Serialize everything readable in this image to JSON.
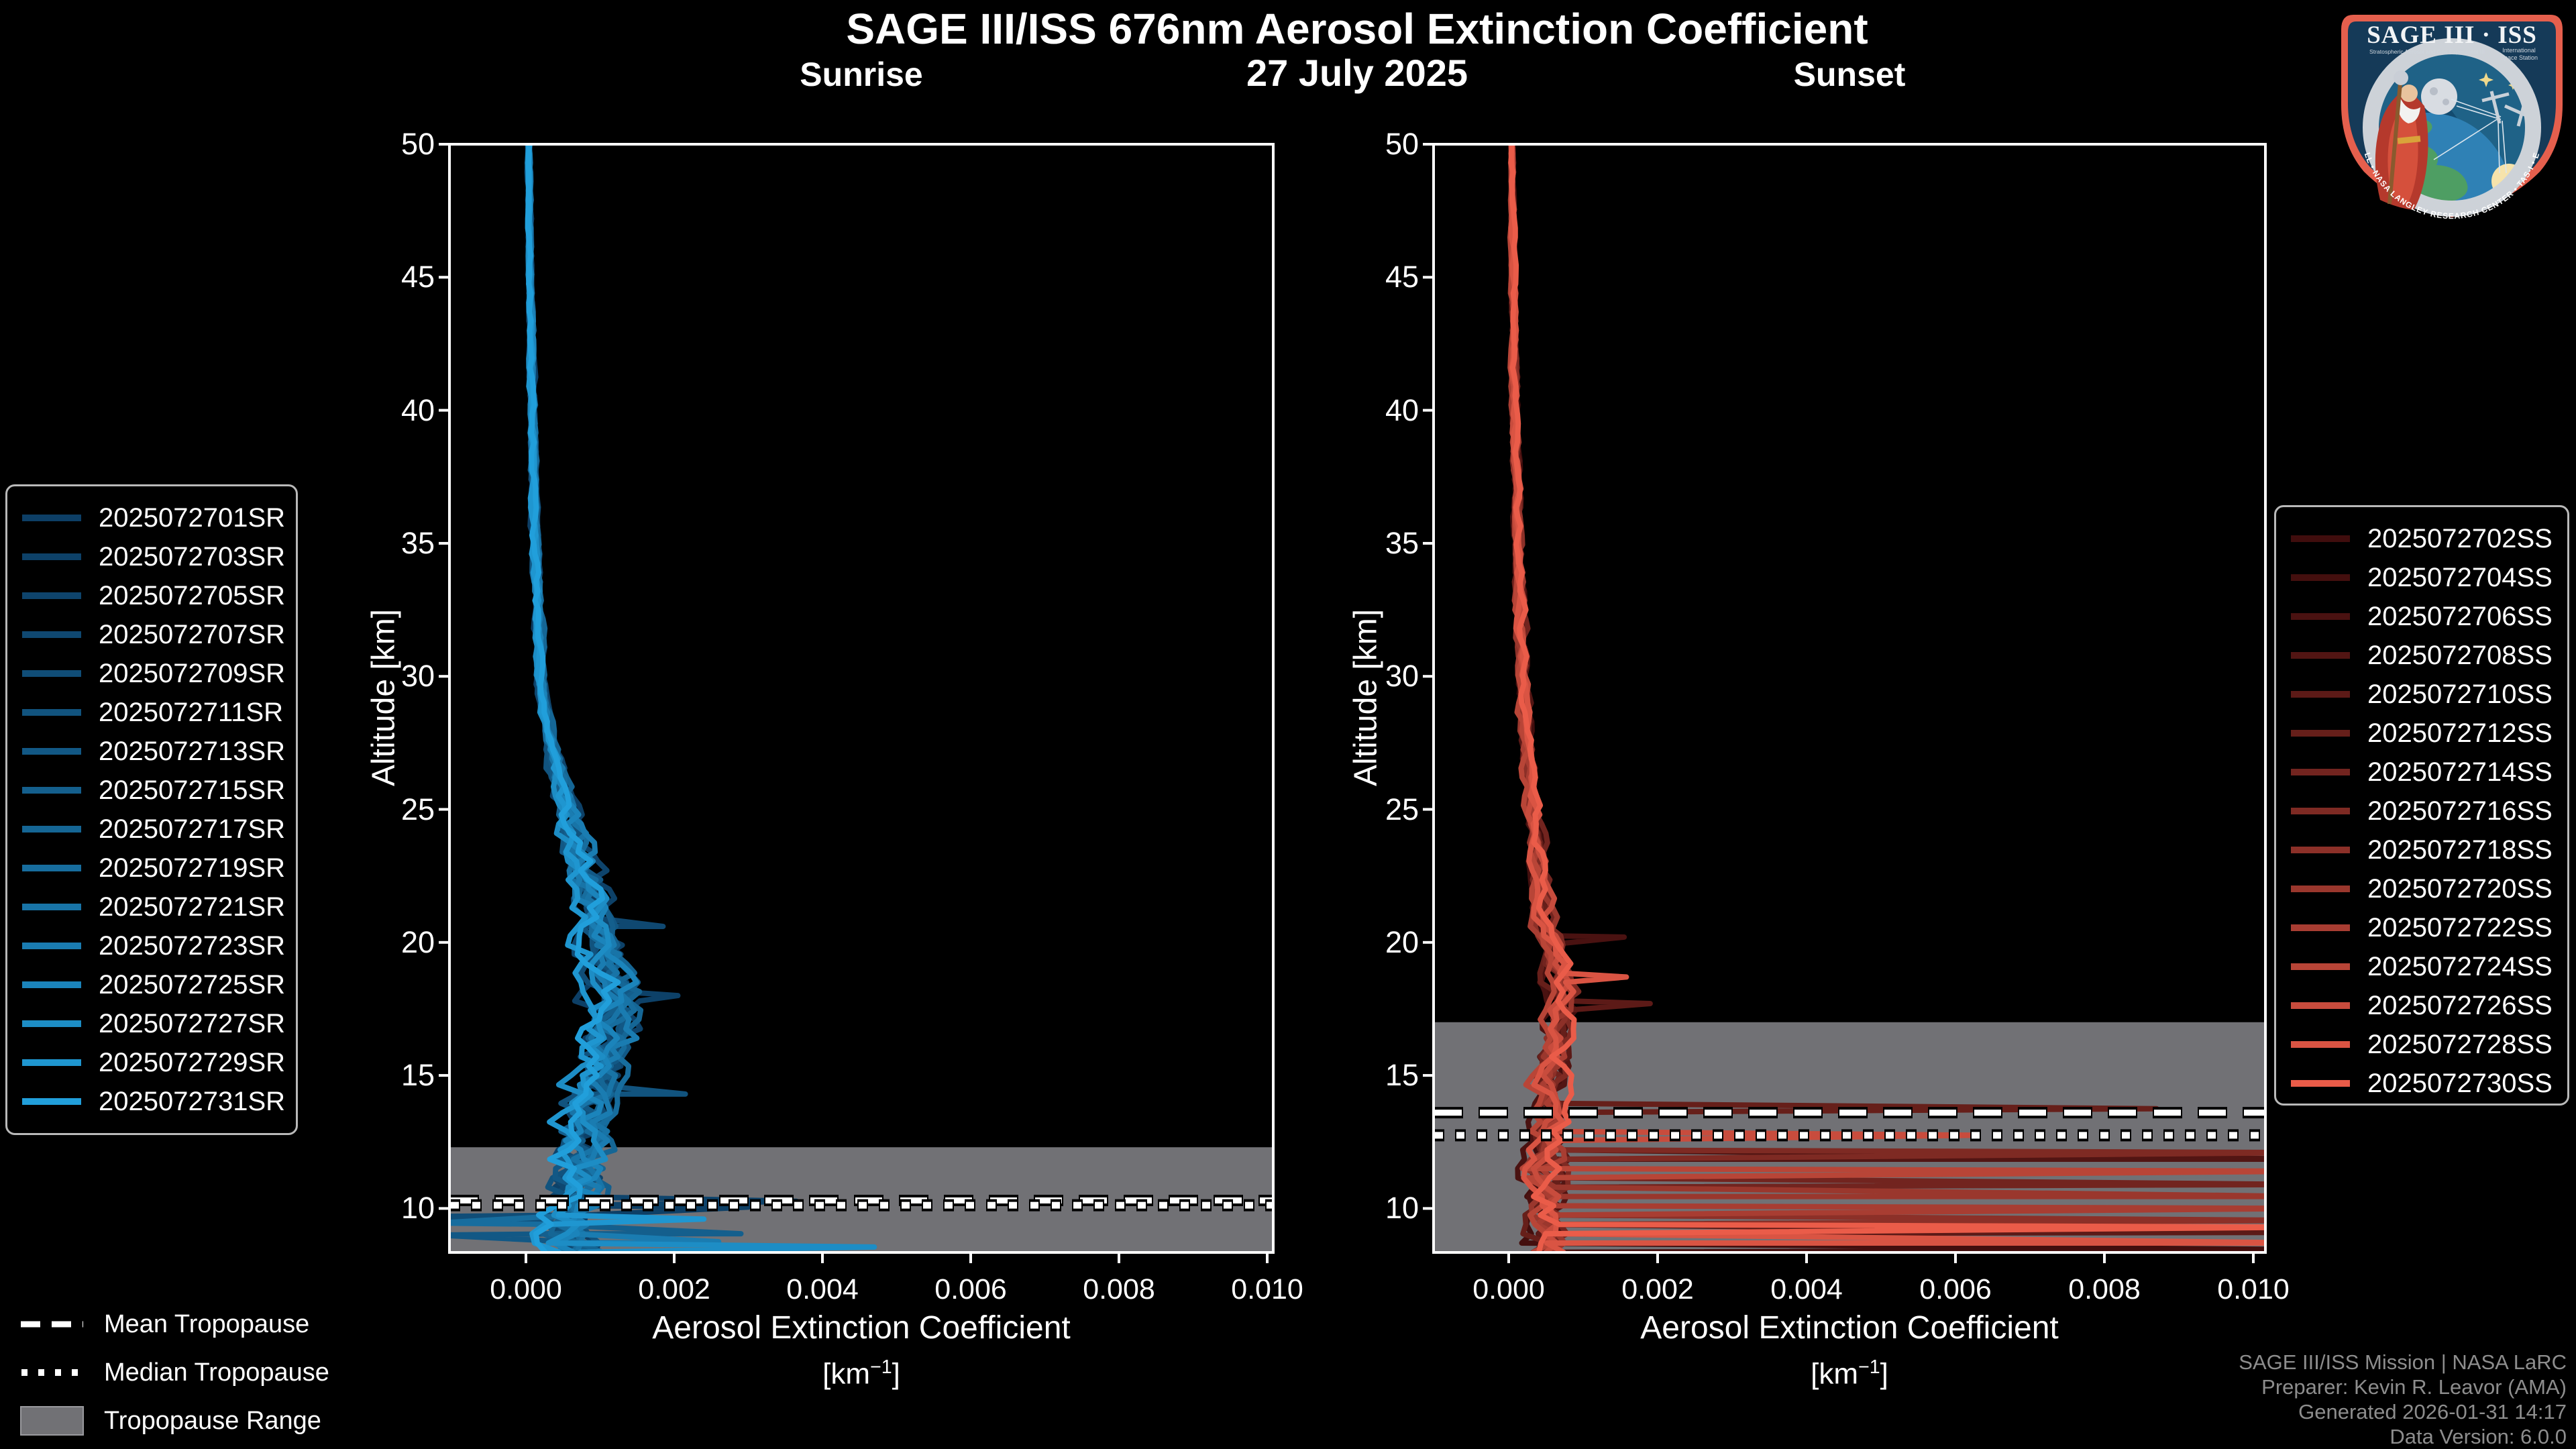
{
  "colors": {
    "background": "#000000",
    "axes": "#ffffff",
    "tropopause_band": "#717175",
    "footer_text": "#8d8d8d",
    "sunrise_cmap_start": "#0d3f66",
    "sunrise_cmap_end": "#219fdb",
    "sunset_cmap_start": "#400d0d",
    "sunset_cmap_end": "#ea5c49",
    "logo_border": "#e55f4d",
    "logo_field": "#153a58"
  },
  "header": {
    "title": "SAGE III/ISS 676nm Aerosol Extinction Coefficient",
    "date": "27 July 2025"
  },
  "axis": {
    "xlabel": "Aerosol Extinction Coefficient",
    "xunit_pre": "[km",
    "xunit_sup": "−1",
    "xunit_post": "]",
    "ylabel": "Altitude [km]"
  },
  "tropopause_legend": {
    "mean": "Mean Tropopause",
    "median": "Median Tropopause",
    "range": "Tropopause Range"
  },
  "footer": {
    "line1": "SAGE III/ISS Mission | NASA LaRC",
    "line2": "Preparer: Kevin R. Leavor (AMA)",
    "line3": "Generated 2026-01-31 14:17",
    "line4": "Data Version: 6.0.0"
  },
  "logo": {
    "title": "SAGE III · ISS",
    "subtitle_left": "Stratospheric Aerosol and Gas Experiment III",
    "subtitle_right1": "International",
    "subtitle_right2": "Space Station",
    "ring_text": "BALL • NASA LANGLEY RESEARCH CENTER • TAS-I • ESA"
  },
  "chart_data": [
    {
      "type": "line",
      "panel": "sunrise",
      "title": "Sunrise",
      "xlabel": "Aerosol Extinction Coefficient [km^-1]",
      "ylabel": "Altitude [km]",
      "xlim": [
        -0.00103,
        0.01008
      ],
      "ylim": [
        8.35,
        50
      ],
      "xticks": [
        0.0,
        0.002,
        0.004,
        0.006,
        0.008,
        0.01
      ],
      "xtick_labels": [
        "0.000",
        "0.002",
        "0.004",
        "0.006",
        "0.008",
        "0.010"
      ],
      "yticks": [
        10,
        15,
        20,
        25,
        30,
        35,
        40,
        45,
        50
      ],
      "ytick_labels": [
        "10",
        "15",
        "20",
        "25",
        "30",
        "35",
        "40",
        "45",
        "50"
      ],
      "legend_position": "outside-left",
      "grid": false,
      "tropopause": {
        "mean_km": 10.3,
        "median_km": 10.12,
        "range_km": [
          8.35,
          12.3
        ]
      },
      "colormap": {
        "start": "#0d3f66",
        "end": "#219fdb"
      },
      "line_width": 8,
      "base_profile": [
        [
          50,
          4e-05
        ],
        [
          45,
          6e-05
        ],
        [
          40,
          9e-05
        ],
        [
          35,
          0.00013
        ],
        [
          30,
          0.0002
        ],
        [
          28,
          0.0003
        ],
        [
          26,
          0.00045
        ],
        [
          24,
          0.00065
        ],
        [
          22,
          0.00085
        ],
        [
          21,
          0.00095
        ],
        [
          20,
          0.00105
        ],
        [
          19,
          0.00115
        ],
        [
          18,
          0.00125
        ],
        [
          17,
          0.00118
        ],
        [
          16,
          0.00108
        ],
        [
          15,
          0.00098
        ],
        [
          14,
          0.0009
        ],
        [
          13,
          0.0008
        ],
        [
          12,
          0.00072
        ],
        [
          11,
          0.00065
        ],
        [
          10.3,
          0.0008
        ],
        [
          9.6,
          0.0006
        ],
        [
          9,
          0.00055
        ],
        [
          8.35,
          0.0007
        ]
      ],
      "noise_amp": [
        [
          50,
          2e-05
        ],
        [
          28,
          6e-05
        ],
        [
          26,
          0.00012
        ],
        [
          24,
          0.0002
        ],
        [
          22,
          0.00028
        ],
        [
          12,
          0.0004
        ],
        [
          8.35,
          0.00045
        ]
      ],
      "series": [
        {
          "name": "2025072701SR",
          "spikes": [
            {
              "alt": 10.05,
              "peak": 0.003
            }
          ]
        },
        {
          "name": "2025072703SR",
          "spikes": [
            {
              "alt": 18.0,
              "peak": 0.00205
            }
          ]
        },
        {
          "name": "2025072705SR",
          "spikes": [
            {
              "alt": 10.27,
              "peak": 0.00365
            }
          ]
        },
        {
          "name": "2025072707SR",
          "spikes": [
            {
              "alt": 20.6,
              "peak": 0.00185
            }
          ]
        },
        {
          "name": "2025072709SR",
          "spikes": [
            {
              "alt": 9.7,
              "peak": -0.0012
            }
          ]
        },
        {
          "name": "2025072711SR",
          "spikes": [
            {
              "alt": 14.3,
              "peak": 0.00215
            }
          ]
        },
        {
          "name": "2025072713SR",
          "spikes": [
            {
              "alt": 9.0,
              "peak": -0.0012
            }
          ]
        },
        {
          "name": "2025072715SR",
          "spikes": [
            {
              "alt": 9.05,
              "peak": 0.0029
            }
          ]
        },
        {
          "name": "2025072717SR",
          "spikes": []
        },
        {
          "name": "2025072719SR",
          "spikes": [
            {
              "alt": 9.45,
              "peak": -0.0012
            }
          ]
        },
        {
          "name": "2025072721SR",
          "spikes": []
        },
        {
          "name": "2025072723SR",
          "spikes": [
            {
              "alt": 8.75,
              "peak": 0.0026
            }
          ]
        },
        {
          "name": "2025072725SR",
          "spikes": []
        },
        {
          "name": "2025072727SR",
          "spikes": [
            {
              "alt": 8.55,
              "peak": 0.0047
            }
          ]
        },
        {
          "name": "2025072729SR",
          "spikes": [
            {
              "alt": 9.6,
              "peak": 0.0024
            }
          ]
        },
        {
          "name": "2025072731SR",
          "spikes": []
        }
      ]
    },
    {
      "type": "line",
      "panel": "sunset",
      "title": "Sunset",
      "xlabel": "Aerosol Extinction Coefficient [km^-1]",
      "ylabel": "Altitude [km]",
      "xlim": [
        -0.00101,
        0.01016
      ],
      "ylim": [
        8.35,
        50
      ],
      "xticks": [
        0.0,
        0.002,
        0.004,
        0.006,
        0.008,
        0.01
      ],
      "xtick_labels": [
        "0.000",
        "0.002",
        "0.004",
        "0.006",
        "0.008",
        "0.010"
      ],
      "yticks": [
        10,
        15,
        20,
        25,
        30,
        35,
        40,
        45,
        50
      ],
      "ytick_labels": [
        "10",
        "15",
        "20",
        "25",
        "30",
        "35",
        "40",
        "45",
        "50"
      ],
      "legend_position": "outside-right",
      "grid": false,
      "tropopause": {
        "mean_km": 13.6,
        "median_km": 12.75,
        "range_km": [
          8.35,
          17.0
        ]
      },
      "colormap": {
        "start": "#400d0d",
        "end": "#ea5c49"
      },
      "line_width": 8,
      "base_profile": [
        [
          50,
          4e-05
        ],
        [
          45,
          6e-05
        ],
        [
          40,
          8e-05
        ],
        [
          35,
          0.00012
        ],
        [
          30,
          0.00018
        ],
        [
          28,
          0.00022
        ],
        [
          26,
          0.00028
        ],
        [
          24,
          0.00035
        ],
        [
          22,
          0.00042
        ],
        [
          20,
          0.00055
        ],
        [
          19,
          0.00062
        ],
        [
          18,
          0.00068
        ],
        [
          17,
          0.00066
        ],
        [
          16,
          0.0006
        ],
        [
          15,
          0.00058
        ],
        [
          14,
          0.00052
        ],
        [
          13,
          0.0005
        ],
        [
          12,
          0.0005
        ],
        [
          11,
          0.00048
        ],
        [
          10,
          0.0005
        ],
        [
          9,
          0.0005
        ],
        [
          8.35,
          0.00052
        ]
      ],
      "noise_amp": [
        [
          50,
          2e-05
        ],
        [
          26,
          8e-05
        ],
        [
          22,
          0.00012
        ],
        [
          20,
          0.00018
        ],
        [
          14,
          0.00022
        ],
        [
          12,
          0.0003
        ],
        [
          8.35,
          0.0003
        ]
      ],
      "series": [
        {
          "name": "2025072702SS",
          "spikes": []
        },
        {
          "name": "2025072704SS",
          "spikes": [
            {
              "alt": 8.45,
              "peak": 0.0108
            }
          ]
        },
        {
          "name": "2025072706SS",
          "spikes": [
            {
              "alt": 20.2,
              "peak": 0.00155
            }
          ]
        },
        {
          "name": "2025072708SS",
          "spikes": [
            {
              "alt": 11.85,
              "peak": 0.0108
            }
          ]
        },
        {
          "name": "2025072710SS",
          "spikes": [
            {
              "alt": 17.7,
              "peak": 0.0019
            },
            {
              "alt": 9.1,
              "peak": 0.0108
            }
          ]
        },
        {
          "name": "2025072712SS",
          "spikes": [
            {
              "alt": 13.75,
              "peak": 0.0087
            }
          ]
        },
        {
          "name": "2025072714SS",
          "spikes": [
            {
              "alt": 10.9,
              "peak": 0.0108
            }
          ]
        },
        {
          "name": "2025072716SS",
          "spikes": [
            {
              "alt": 12.1,
              "peak": 0.0108
            }
          ]
        },
        {
          "name": "2025072718SS",
          "spikes": [
            {
              "alt": 9.55,
              "peak": 0.0108
            }
          ]
        },
        {
          "name": "2025072720SS",
          "spikes": [
            {
              "alt": 10.45,
              "peak": 0.0108
            }
          ]
        },
        {
          "name": "2025072722SS",
          "spikes": [
            {
              "alt": 10.0,
              "peak": 0.0108
            }
          ]
        },
        {
          "name": "2025072724SS",
          "spikes": [
            {
              "alt": 11.4,
              "peak": 0.0108
            }
          ]
        },
        {
          "name": "2025072726SS",
          "spikes": [
            {
              "alt": 12.75,
              "peak": 0.0063
            }
          ]
        },
        {
          "name": "2025072728SS",
          "spikes": [
            {
              "alt": 18.7,
              "peak": 0.00158
            },
            {
              "alt": 8.7,
              "peak": 0.0108
            }
          ]
        },
        {
          "name": "2025072730SS",
          "spikes": [
            {
              "alt": 9.3,
              "peak": 0.0108
            }
          ]
        }
      ]
    }
  ]
}
